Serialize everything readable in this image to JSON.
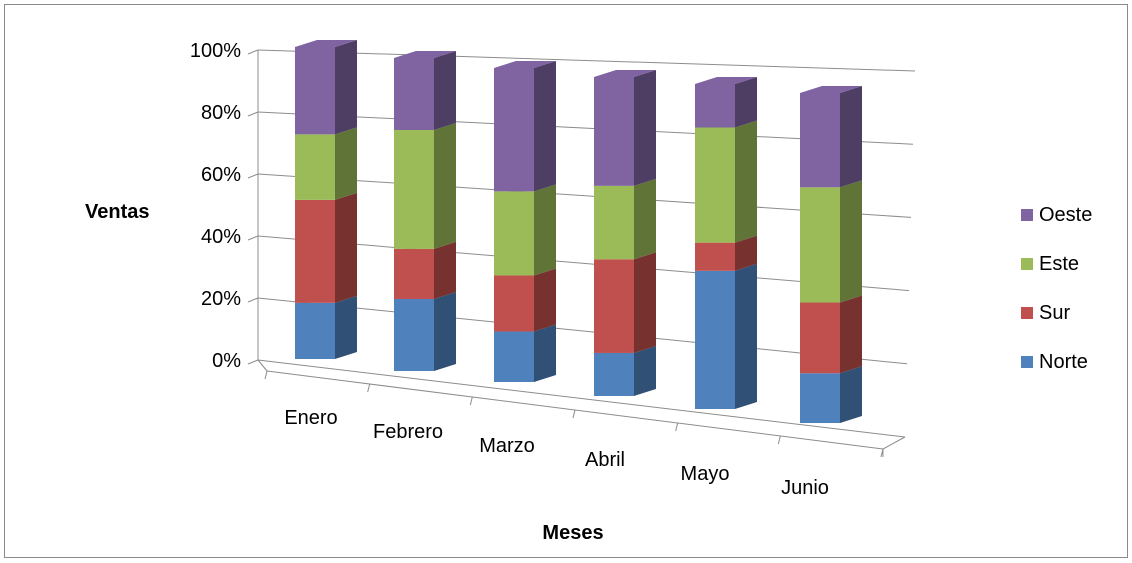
{
  "chart_data": {
    "type": "bar",
    "stacked": "percent",
    "view": "3d",
    "categories": [
      "Enero",
      "Febrero",
      "Marzo",
      "Abril",
      "Mayo",
      "Junio"
    ],
    "series": [
      {
        "name": "Norte",
        "color": "#4F81BD",
        "values": [
          18,
          23,
          18,
          17,
          54,
          19
        ]
      },
      {
        "name": "Sur",
        "color": "#C0504D",
        "values": [
          33,
          16,
          20,
          37,
          11,
          27
        ]
      },
      {
        "name": "Este",
        "color": "#9BBB59",
        "values": [
          21,
          38,
          30,
          29,
          45,
          44
        ]
      },
      {
        "name": "Oeste",
        "color": "#8064A2",
        "values": [
          28,
          23,
          44,
          43,
          17,
          36
        ]
      }
    ],
    "y_ticks": [
      "0%",
      "20%",
      "40%",
      "60%",
      "80%",
      "100%"
    ],
    "ylim": [
      0,
      100
    ],
    "xlabel": "Meses",
    "ylabel": "Ventas",
    "grid": true,
    "legend": "right"
  }
}
